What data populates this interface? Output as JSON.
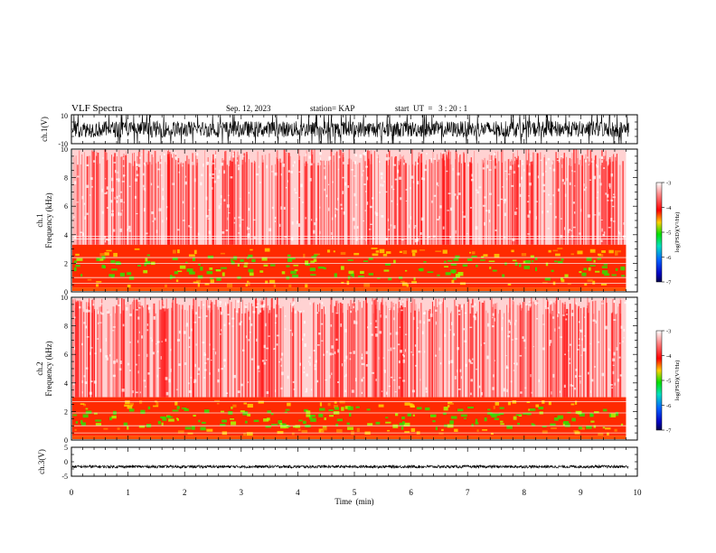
{
  "header": {
    "title": "VLF Spectra",
    "date": "Sep. 12, 2023",
    "station": "station= KAP",
    "start": "start  UT  =   3 : 20 : 1"
  },
  "colors": {
    "spectrogram_low": "#0000a0",
    "spectrogram_mid": "#00e000",
    "spectrogram_high": "#ff0000",
    "trace": "#000000"
  },
  "chart_data": [
    {
      "type": "line",
      "panel": "ch1-waveform",
      "ylabel": "ch.1(V)",
      "ylim": [
        -10,
        10
      ],
      "yticks": [
        "10",
        "-10"
      ],
      "xlim": [
        0,
        10
      ],
      "series": [
        {
          "amplitude_envelope": [
            -8,
            8
          ]
        }
      ]
    },
    {
      "type": "heatmap",
      "panel": "ch1-spectrogram",
      "ylabel": "ch.1\nFrequency (kHz)",
      "ylim": [
        0,
        10
      ],
      "yticks": [
        "0",
        "2",
        "4",
        "6",
        "8",
        "10"
      ],
      "xlim": [
        0,
        9.8
      ],
      "intense_band_khz": [
        0.3,
        3.3
      ],
      "line_frequencies_khz": [
        0.6,
        1.0,
        2.0,
        2.4,
        3.7,
        3.9
      ],
      "colorbar": {
        "label": "log(PSD)(V²/Hz)",
        "ticks": [
          "-3",
          "-4",
          "-5",
          "-6",
          "-7"
        ],
        "range": [
          -7,
          -3
        ]
      }
    },
    {
      "type": "heatmap",
      "panel": "ch2-spectrogram",
      "ylabel": "ch.2\nFrequency (kHz)",
      "ylim": [
        0,
        10
      ],
      "yticks": [
        "0",
        "2",
        "4",
        "6",
        "8",
        "10"
      ],
      "xlim": [
        0,
        9.8
      ],
      "intense_band_khz": [
        0.3,
        3.0
      ],
      "line_frequencies_khz": [
        0.5,
        1.0,
        1.9,
        2.7
      ],
      "colorbar": {
        "label": "log(PSD)(V²/Hz)",
        "ticks": [
          "-3",
          "-4",
          "-5",
          "-6",
          "-7"
        ],
        "range": [
          -7,
          -3
        ]
      }
    },
    {
      "type": "line",
      "panel": "ch3-waveform",
      "ylabel": "ch.3(V)",
      "ylim": [
        -5,
        5
      ],
      "yticks": [
        "5",
        "0",
        "-5"
      ],
      "xlim": [
        0,
        10
      ],
      "series": [
        {
          "amplitude_envelope": [
            -2.2,
            -1.2
          ]
        }
      ]
    }
  ],
  "xaxis": {
    "label": "Time  (min)",
    "ticks": [
      "0",
      "1",
      "2",
      "3",
      "4",
      "5",
      "6",
      "7",
      "8",
      "9",
      "10"
    ],
    "range": [
      0,
      10
    ]
  }
}
